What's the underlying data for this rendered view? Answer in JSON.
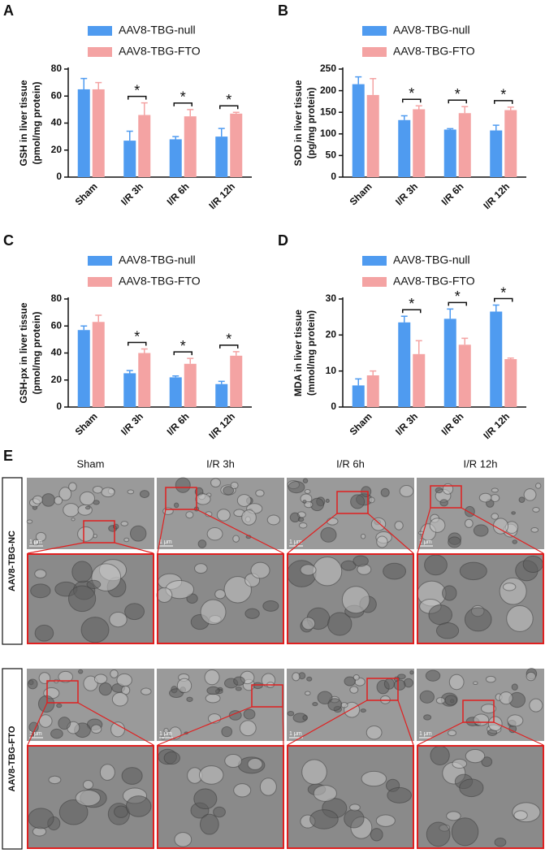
{
  "chart_data": [
    {
      "type": "bar",
      "panel": "A",
      "ylabel": [
        "GSH in liver tissue",
        "(pmol/mg protein)"
      ],
      "categories": [
        "Sham",
        "I/R 3h",
        "I/R 6h",
        "I/R 12h"
      ],
      "series": [
        {
          "name": "AAV8-TBG-null",
          "color": "#4f9bf0",
          "values": [
            65,
            27,
            28,
            30
          ],
          "errors": [
            8,
            7,
            2,
            6
          ]
        },
        {
          "name": "AAV8-TBG-FTO",
          "color": "#f4a3a3",
          "values": [
            65,
            46,
            45,
            47
          ],
          "errors": [
            5,
            9,
            5,
            1
          ]
        }
      ],
      "significance": [
        null,
        "*",
        "*",
        "*"
      ],
      "ylim": [
        0,
        80
      ],
      "yticks": [
        0,
        20,
        40,
        60,
        80
      ]
    },
    {
      "type": "bar",
      "panel": "B",
      "ylabel": [
        "SOD in liver tissue",
        "(pg/mg protein)"
      ],
      "categories": [
        "Sham",
        "I/R 3h",
        "I/R 6h",
        "I/R 12h"
      ],
      "series": [
        {
          "name": "AAV8-TBG-null",
          "color": "#4f9bf0",
          "values": [
            215,
            132,
            110,
            108
          ],
          "errors": [
            17,
            10,
            2,
            12
          ]
        },
        {
          "name": "AAV8-TBG-FTO",
          "color": "#f4a3a3",
          "values": [
            190,
            157,
            148,
            155
          ],
          "errors": [
            38,
            8,
            15,
            7
          ]
        }
      ],
      "significance": [
        null,
        "*",
        "*",
        "*"
      ],
      "ylim": [
        0,
        250
      ],
      "yticks": [
        0,
        50,
        100,
        150,
        200,
        250
      ]
    },
    {
      "type": "bar",
      "panel": "C",
      "ylabel": [
        "GSH-px in liver tissue",
        "(pmol/mg protein)"
      ],
      "categories": [
        "Sham",
        "I/R 3h",
        "I/R 6h",
        "I/R 12h"
      ],
      "series": [
        {
          "name": "AAV8-TBG-null",
          "color": "#4f9bf0",
          "values": [
            57,
            25,
            22,
            17
          ],
          "errors": [
            3,
            2,
            1,
            2
          ]
        },
        {
          "name": "AAV8-TBG-FTO",
          "color": "#f4a3a3",
          "values": [
            63,
            40,
            32,
            38
          ],
          "errors": [
            5,
            3,
            4,
            3
          ]
        }
      ],
      "significance": [
        null,
        "*",
        "*",
        "*"
      ],
      "ylim": [
        0,
        80
      ],
      "yticks": [
        0,
        20,
        40,
        60,
        80
      ]
    },
    {
      "type": "bar",
      "panel": "D",
      "ylabel": [
        "MDA in liver tissue",
        "(mmol/mg protein)"
      ],
      "categories": [
        "Sham",
        "I/R 3h",
        "I/R 6h",
        "I/R 12h"
      ],
      "series": [
        {
          "name": "AAV8-TBG-null",
          "color": "#4f9bf0",
          "values": [
            6,
            23.5,
            24.5,
            26.5
          ],
          "errors": [
            1.8,
            1.7,
            2.7,
            1.8
          ]
        },
        {
          "name": "AAV8-TBG-FTO",
          "color": "#f4a3a3",
          "values": [
            8.8,
            14.7,
            17.3,
            13.3
          ],
          "errors": [
            1.2,
            3.7,
            1.8,
            0.3
          ]
        }
      ],
      "significance": [
        null,
        "*",
        "*",
        "*"
      ],
      "ylim": [
        0,
        30
      ],
      "yticks": [
        0,
        10,
        20,
        30
      ]
    }
  ],
  "micrographs": {
    "panel": "E",
    "columns": [
      "Sham",
      "I/R 3h",
      "I/R 6h",
      "I/R 12h"
    ],
    "rows": [
      "AAV8-TBG-NC",
      "AAV8-TBG-FTO"
    ],
    "scale_bar": "1 μm"
  }
}
